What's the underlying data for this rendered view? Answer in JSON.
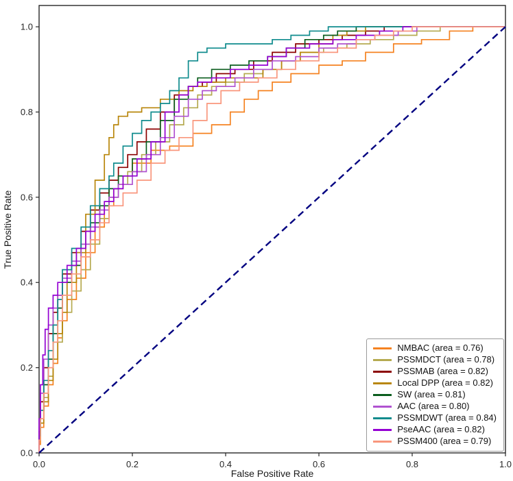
{
  "chart_data": {
    "type": "line",
    "subtype": "roc-curve",
    "title": "",
    "xlabel": "False Positive Rate",
    "ylabel": "True Positive Rate",
    "xlim": [
      0.0,
      1.0
    ],
    "ylim": [
      0.0,
      1.05
    ],
    "grid": false,
    "legend_position": "lower right",
    "ticks": {
      "x_values": [
        0.0,
        0.2,
        0.4,
        0.6,
        0.8,
        1.0
      ],
      "x_labels": [
        "0.0",
        "0.2",
        "0.4",
        "0.6",
        "0.8",
        "1.0"
      ],
      "y_values": [
        0.0,
        0.2,
        0.4,
        0.6,
        0.8,
        1.0
      ],
      "y_labels": [
        "0.0",
        "0.2",
        "0.4",
        "0.6",
        "0.8",
        "1.0"
      ]
    },
    "diagonal": {
      "name": "chance line",
      "style": "dashed",
      "color": "#000080",
      "from": [
        0,
        0
      ],
      "to": [
        1,
        1
      ]
    },
    "series": [
      {
        "name": "NMBAC",
        "area": 0.76,
        "label": "NMBAC (area = 0.76)",
        "color": "#f58220",
        "points": [
          [
            0,
            0
          ],
          [
            0.003,
            0.02
          ],
          [
            0.01,
            0.06
          ],
          [
            0.02,
            0.11
          ],
          [
            0.03,
            0.16
          ],
          [
            0.04,
            0.21
          ],
          [
            0.05,
            0.27
          ],
          [
            0.06,
            0.31
          ],
          [
            0.08,
            0.36
          ],
          [
            0.1,
            0.41
          ],
          [
            0.12,
            0.47
          ],
          [
            0.14,
            0.53
          ],
          [
            0.16,
            0.58
          ],
          [
            0.18,
            0.62
          ],
          [
            0.2,
            0.65
          ],
          [
            0.24,
            0.68
          ],
          [
            0.28,
            0.71
          ],
          [
            0.33,
            0.72
          ],
          [
            0.37,
            0.75
          ],
          [
            0.41,
            0.77
          ],
          [
            0.44,
            0.8
          ],
          [
            0.47,
            0.83
          ],
          [
            0.5,
            0.85
          ],
          [
            0.54,
            0.87
          ],
          [
            0.6,
            0.89
          ],
          [
            0.65,
            0.91
          ],
          [
            0.7,
            0.92
          ],
          [
            0.76,
            0.94
          ],
          [
            0.82,
            0.96
          ],
          [
            0.88,
            0.97
          ],
          [
            0.93,
            0.99
          ],
          [
            0.97,
            1.0
          ],
          [
            1,
            1
          ]
        ]
      },
      {
        "name": "PSSMDCT",
        "area": 0.78,
        "label": "PSSMDCT (area = 0.78)",
        "color": "#b5aa50",
        "points": [
          [
            0,
            0
          ],
          [
            0.003,
            0.03
          ],
          [
            0.01,
            0.08
          ],
          [
            0.02,
            0.13
          ],
          [
            0.03,
            0.18
          ],
          [
            0.05,
            0.26
          ],
          [
            0.07,
            0.33
          ],
          [
            0.09,
            0.38
          ],
          [
            0.11,
            0.43
          ],
          [
            0.13,
            0.49
          ],
          [
            0.15,
            0.55
          ],
          [
            0.17,
            0.6
          ],
          [
            0.19,
            0.63
          ],
          [
            0.22,
            0.66
          ],
          [
            0.25,
            0.7
          ],
          [
            0.28,
            0.73
          ],
          [
            0.31,
            0.77
          ],
          [
            0.34,
            0.81
          ],
          [
            0.37,
            0.84
          ],
          [
            0.4,
            0.86
          ],
          [
            0.44,
            0.87
          ],
          [
            0.48,
            0.89
          ],
          [
            0.52,
            0.9
          ],
          [
            0.56,
            0.92
          ],
          [
            0.61,
            0.94
          ],
          [
            0.66,
            0.95
          ],
          [
            0.71,
            0.96
          ],
          [
            0.76,
            0.97
          ],
          [
            0.81,
            0.98
          ],
          [
            0.86,
            0.99
          ],
          [
            0.9,
            1.0
          ],
          [
            1,
            1
          ]
        ]
      },
      {
        "name": "PSSMAB",
        "area": 0.82,
        "label": "PSSMAB (area = 0.82)",
        "color": "#8b0000",
        "points": [
          [
            0,
            0
          ],
          [
            0.003,
            0.05
          ],
          [
            0.01,
            0.12
          ],
          [
            0.02,
            0.2
          ],
          [
            0.03,
            0.28
          ],
          [
            0.04,
            0.33
          ],
          [
            0.05,
            0.37
          ],
          [
            0.07,
            0.42
          ],
          [
            0.09,
            0.47
          ],
          [
            0.11,
            0.52
          ],
          [
            0.13,
            0.57
          ],
          [
            0.15,
            0.61
          ],
          [
            0.17,
            0.64
          ],
          [
            0.19,
            0.67
          ],
          [
            0.21,
            0.7
          ],
          [
            0.23,
            0.73
          ],
          [
            0.26,
            0.76
          ],
          [
            0.29,
            0.8
          ],
          [
            0.32,
            0.84
          ],
          [
            0.35,
            0.86
          ],
          [
            0.38,
            0.87
          ],
          [
            0.42,
            0.89
          ],
          [
            0.46,
            0.9
          ],
          [
            0.5,
            0.92
          ],
          [
            0.55,
            0.94
          ],
          [
            0.6,
            0.96
          ],
          [
            0.65,
            0.97
          ],
          [
            0.7,
            0.98
          ],
          [
            0.74,
            0.99
          ],
          [
            0.78,
            1.0
          ],
          [
            1,
            1
          ]
        ]
      },
      {
        "name": "Local DPP",
        "area": 0.82,
        "label": "Local DPP (area = 0.82)",
        "color": "#b8860b",
        "points": [
          [
            0,
            0
          ],
          [
            0.003,
            0.03
          ],
          [
            0.01,
            0.07
          ],
          [
            0.02,
            0.12
          ],
          [
            0.03,
            0.17
          ],
          [
            0.04,
            0.22
          ],
          [
            0.05,
            0.28
          ],
          [
            0.06,
            0.33
          ],
          [
            0.08,
            0.4
          ],
          [
            0.1,
            0.47
          ],
          [
            0.12,
            0.56
          ],
          [
            0.14,
            0.64
          ],
          [
            0.15,
            0.7
          ],
          [
            0.16,
            0.74
          ],
          [
            0.17,
            0.77
          ],
          [
            0.19,
            0.79
          ],
          [
            0.22,
            0.8
          ],
          [
            0.26,
            0.81
          ],
          [
            0.3,
            0.83
          ],
          [
            0.33,
            0.85
          ],
          [
            0.36,
            0.86
          ],
          [
            0.4,
            0.87
          ],
          [
            0.44,
            0.88
          ],
          [
            0.48,
            0.88
          ],
          [
            0.52,
            0.9
          ],
          [
            0.56,
            0.92
          ],
          [
            0.6,
            0.94
          ],
          [
            0.63,
            0.96
          ],
          [
            0.66,
            0.98
          ],
          [
            0.7,
            0.99
          ],
          [
            0.73,
            1.0
          ],
          [
            1,
            1
          ]
        ]
      },
      {
        "name": "SW",
        "area": 0.81,
        "label": "SW (area = 0.81)",
        "color": "#0b5d1e",
        "points": [
          [
            0,
            0
          ],
          [
            0.003,
            0.04
          ],
          [
            0.01,
            0.1
          ],
          [
            0.02,
            0.16
          ],
          [
            0.03,
            0.22
          ],
          [
            0.04,
            0.28
          ],
          [
            0.05,
            0.34
          ],
          [
            0.07,
            0.4
          ],
          [
            0.09,
            0.44
          ],
          [
            0.11,
            0.49
          ],
          [
            0.13,
            0.54
          ],
          [
            0.15,
            0.58
          ],
          [
            0.17,
            0.62
          ],
          [
            0.2,
            0.65
          ],
          [
            0.23,
            0.69
          ],
          [
            0.26,
            0.73
          ],
          [
            0.29,
            0.78
          ],
          [
            0.32,
            0.83
          ],
          [
            0.34,
            0.86
          ],
          [
            0.37,
            0.88
          ],
          [
            0.41,
            0.9
          ],
          [
            0.45,
            0.91
          ],
          [
            0.49,
            0.92
          ],
          [
            0.53,
            0.93
          ],
          [
            0.57,
            0.95
          ],
          [
            0.61,
            0.97
          ],
          [
            0.64,
            0.98
          ],
          [
            0.68,
            0.99
          ],
          [
            0.72,
            1.0
          ],
          [
            1,
            1
          ]
        ]
      },
      {
        "name": "AAC",
        "area": 0.8,
        "label": "AAC (area = 0.80)",
        "color": "#b052d0",
        "points": [
          [
            0,
            0
          ],
          [
            0.003,
            0.06
          ],
          [
            0.01,
            0.14
          ],
          [
            0.02,
            0.22
          ],
          [
            0.03,
            0.3
          ],
          [
            0.04,
            0.34
          ],
          [
            0.05,
            0.37
          ],
          [
            0.07,
            0.41
          ],
          [
            0.09,
            0.45
          ],
          [
            0.11,
            0.49
          ],
          [
            0.13,
            0.53
          ],
          [
            0.15,
            0.57
          ],
          [
            0.17,
            0.6
          ],
          [
            0.2,
            0.63
          ],
          [
            0.23,
            0.66
          ],
          [
            0.26,
            0.7
          ],
          [
            0.29,
            0.74
          ],
          [
            0.32,
            0.79
          ],
          [
            0.35,
            0.83
          ],
          [
            0.38,
            0.85
          ],
          [
            0.42,
            0.86
          ],
          [
            0.46,
            0.88
          ],
          [
            0.5,
            0.9
          ],
          [
            0.55,
            0.92
          ],
          [
            0.6,
            0.93
          ],
          [
            0.64,
            0.95
          ],
          [
            0.68,
            0.96
          ],
          [
            0.72,
            0.97
          ],
          [
            0.77,
            0.98
          ],
          [
            0.81,
            0.99
          ],
          [
            0.85,
            1.0
          ],
          [
            1,
            1
          ]
        ]
      },
      {
        "name": "PSSMDWT",
        "area": 0.84,
        "label": "PSSMDWT (area = 0.84)",
        "color": "#0f8b8d",
        "points": [
          [
            0,
            0
          ],
          [
            0.003,
            0.04
          ],
          [
            0.01,
            0.1
          ],
          [
            0.02,
            0.17
          ],
          [
            0.03,
            0.24
          ],
          [
            0.04,
            0.3
          ],
          [
            0.05,
            0.36
          ],
          [
            0.07,
            0.43
          ],
          [
            0.09,
            0.48
          ],
          [
            0.11,
            0.53
          ],
          [
            0.13,
            0.58
          ],
          [
            0.15,
            0.62
          ],
          [
            0.16,
            0.65
          ],
          [
            0.18,
            0.68
          ],
          [
            0.2,
            0.72
          ],
          [
            0.22,
            0.75
          ],
          [
            0.24,
            0.78
          ],
          [
            0.26,
            0.8
          ],
          [
            0.28,
            0.82
          ],
          [
            0.3,
            0.85
          ],
          [
            0.32,
            0.88
          ],
          [
            0.34,
            0.92
          ],
          [
            0.36,
            0.94
          ],
          [
            0.4,
            0.95
          ],
          [
            0.45,
            0.96
          ],
          [
            0.5,
            0.96
          ],
          [
            0.54,
            0.97
          ],
          [
            0.58,
            0.98
          ],
          [
            0.62,
            0.99
          ],
          [
            0.68,
            1.0
          ],
          [
            1,
            1
          ]
        ]
      },
      {
        "name": "PseAAC",
        "area": 0.82,
        "label": "PseAAC (area = 0.82)",
        "color": "#9400d3",
        "points": [
          [
            0,
            0
          ],
          [
            0.003,
            0.08
          ],
          [
            0.008,
            0.16
          ],
          [
            0.013,
            0.23
          ],
          [
            0.02,
            0.29
          ],
          [
            0.03,
            0.34
          ],
          [
            0.04,
            0.37
          ],
          [
            0.06,
            0.4
          ],
          [
            0.08,
            0.44
          ],
          [
            0.1,
            0.48
          ],
          [
            0.12,
            0.52
          ],
          [
            0.14,
            0.56
          ],
          [
            0.16,
            0.59
          ],
          [
            0.18,
            0.62
          ],
          [
            0.21,
            0.65
          ],
          [
            0.24,
            0.69
          ],
          [
            0.27,
            0.73
          ],
          [
            0.3,
            0.8
          ],
          [
            0.32,
            0.84
          ],
          [
            0.34,
            0.86
          ],
          [
            0.37,
            0.87
          ],
          [
            0.41,
            0.88
          ],
          [
            0.45,
            0.9
          ],
          [
            0.49,
            0.91
          ],
          [
            0.53,
            0.93
          ],
          [
            0.58,
            0.95
          ],
          [
            0.63,
            0.96
          ],
          [
            0.68,
            0.97
          ],
          [
            0.73,
            0.98
          ],
          [
            0.78,
            0.99
          ],
          [
            0.83,
            1.0
          ],
          [
            1,
            1
          ]
        ]
      },
      {
        "name": "PSSM400",
        "area": 0.79,
        "label": "PSSM400 (area = 0.79)",
        "color": "#f9967c",
        "points": [
          [
            0,
            0
          ],
          [
            0.003,
            0.03
          ],
          [
            0.01,
            0.08
          ],
          [
            0.02,
            0.14
          ],
          [
            0.03,
            0.2
          ],
          [
            0.04,
            0.26
          ],
          [
            0.05,
            0.31
          ],
          [
            0.07,
            0.37
          ],
          [
            0.09,
            0.42
          ],
          [
            0.11,
            0.46
          ],
          [
            0.13,
            0.5
          ],
          [
            0.15,
            0.54
          ],
          [
            0.18,
            0.58
          ],
          [
            0.21,
            0.61
          ],
          [
            0.24,
            0.64
          ],
          [
            0.27,
            0.68
          ],
          [
            0.3,
            0.71
          ],
          [
            0.33,
            0.74
          ],
          [
            0.36,
            0.78
          ],
          [
            0.39,
            0.82
          ],
          [
            0.43,
            0.85
          ],
          [
            0.47,
            0.87
          ],
          [
            0.51,
            0.88
          ],
          [
            0.55,
            0.9
          ],
          [
            0.6,
            0.92
          ],
          [
            0.64,
            0.94
          ],
          [
            0.68,
            0.95
          ],
          [
            0.72,
            0.97
          ],
          [
            0.76,
            0.98
          ],
          [
            0.8,
            0.99
          ],
          [
            0.84,
            1.0
          ],
          [
            1,
            1
          ]
        ]
      }
    ]
  }
}
